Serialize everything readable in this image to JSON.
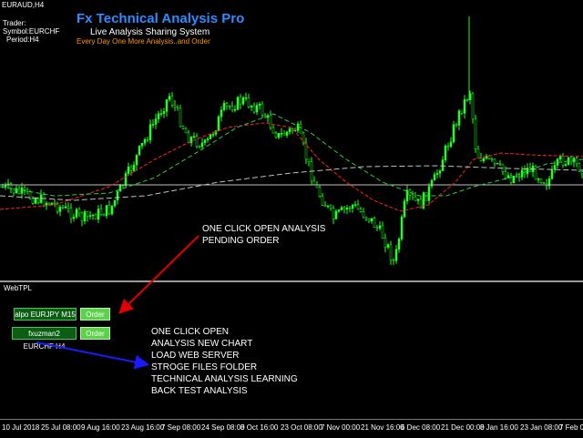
{
  "chart": {
    "symbol_title": "EURAUD,H4",
    "info_lines": [
      "Trader:",
      "Symbol:EURCHF",
      "Period:H4"
    ]
  },
  "brand": {
    "title": "Fx Technical Analysis Pro",
    "subtitle": "Live Analysis Sharing System",
    "tagline": "Every Day One More Analysis..and Order"
  },
  "annotation_top": {
    "lines": [
      "ONE CLICK OPEN ANALYSIS",
      "PENDING ORDER"
    ],
    "arrow_color": "#e00000"
  },
  "panel": {
    "title": "WebTPL",
    "rows": [
      {
        "label": "alpo EURJPY M15",
        "button": "Order"
      },
      {
        "label": "fxuzman2 EURCHF H4",
        "button": "Order"
      }
    ]
  },
  "annotation_bottom": {
    "lines": [
      "ONE CLICK OPEN",
      "ANALYSIS NEW CHART",
      "LOAD WEB SERVER",
      "STROGE FILES FOLDER",
      "TECHNICAL ANALYSIS LEARNING",
      "BACK TEST ANALYSIS"
    ],
    "arrow_color": "#1a1aff"
  },
  "time_axis": {
    "labels": [
      "10 Jul 2018",
      "25 Jul 08:00",
      "9 Aug 16:00",
      "23 Aug 16:00",
      "7 Sep 08:00",
      "24 Sep 08:00",
      "8 Oct 16:00",
      "23 Oct 08:00",
      "7 Nov 00:00",
      "21 Nov 16:00",
      "6 Dec 08:00",
      "21 Dec 00:00",
      "8 Jan 16:00",
      "23 Jan 08:00",
      "7 Feb 08"
    ]
  },
  "colors": {
    "bull_candle": "#22ff22",
    "bear_candle": "#22ff22",
    "ma_fast": "#ff2020",
    "ma_mid": "#2ecc40",
    "ma_slow": "#c0c0c0",
    "hline": "#bfbfbf"
  }
}
